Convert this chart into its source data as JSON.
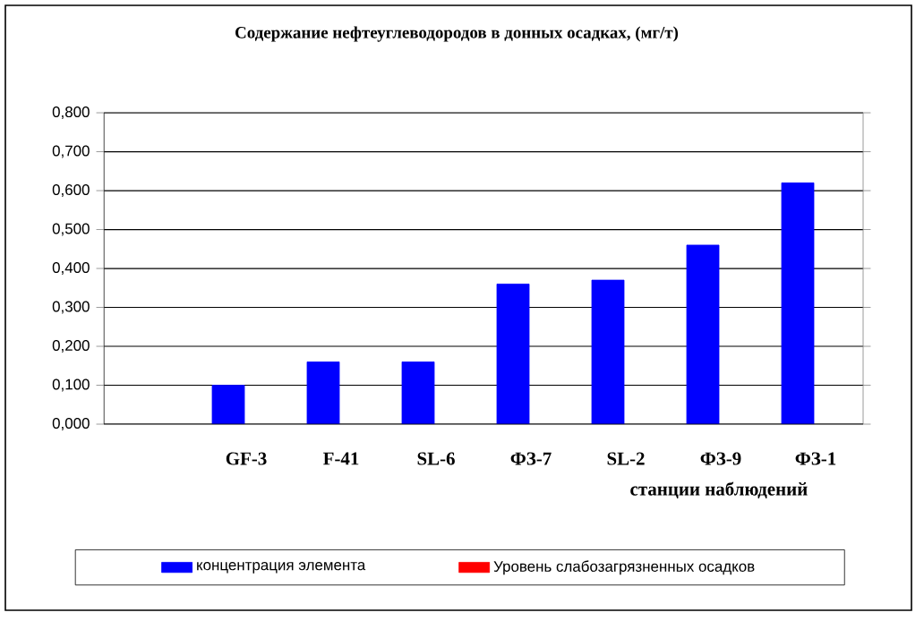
{
  "chart_data": {
    "type": "bar",
    "title": "Содержание нефтеуглеводородов в донных осадках, (мг/т)",
    "xlabel": "станции наблюдений",
    "categories": [
      null,
      "GF-3",
      "F-41",
      "SL-6",
      "ФЗ-7",
      "SL-2",
      "ФЗ-9",
      "ФЗ-1"
    ],
    "series": [
      {
        "name": "концентрация элемента",
        "color": "#0000ff",
        "values": [
          null,
          0.1,
          0.16,
          0.16,
          0.36,
          0.37,
          0.46,
          0.62
        ]
      },
      {
        "name": "Уровень слабозагрязненных осадков",
        "color": "#ff0000",
        "values": [
          null,
          null,
          null,
          null,
          null,
          null,
          null,
          null
        ]
      }
    ],
    "ylim": [
      0,
      0.8
    ],
    "yticks": [
      {
        "value": 0,
        "label": "0,000"
      },
      {
        "value": 0.1,
        "label": "0,100"
      },
      {
        "value": 0.2,
        "label": "0,200"
      },
      {
        "value": 0.3,
        "label": "0,300"
      },
      {
        "value": 0.4,
        "label": "0,400"
      },
      {
        "value": 0.5,
        "label": "0,500"
      },
      {
        "value": 0.6,
        "label": "0,600"
      },
      {
        "value": 0.7,
        "label": "0,700"
      },
      {
        "value": 0.8,
        "label": "0,800"
      }
    ],
    "grid": "y",
    "legend": "bottom"
  }
}
